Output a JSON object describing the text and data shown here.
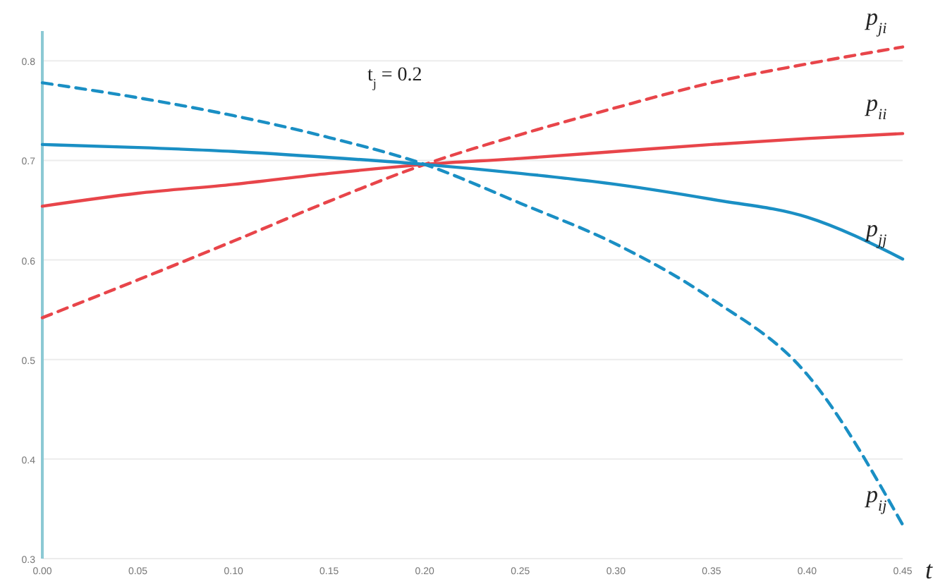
{
  "chart_data": {
    "type": "line",
    "xlabel": "t",
    "annotations": [
      "t$_{j}$ = 0.2"
    ],
    "x": [
      0,
      0.05,
      0.1,
      0.15,
      0.2,
      0.25,
      0.3,
      0.35,
      0.4,
      0.45
    ],
    "series": [
      {
        "name": "p$_{ji}$",
        "color": "#e8454a",
        "line_style": "dashed",
        "values": [
          0.542,
          0.58,
          0.619,
          0.659,
          0.696,
          0.726,
          0.753,
          0.778,
          0.797,
          0.814
        ]
      },
      {
        "name": "p$_{ii}$",
        "color": "#e8454a",
        "line_style": "solid",
        "values": [
          0.654,
          0.667,
          0.676,
          0.687,
          0.696,
          0.702,
          0.709,
          0.716,
          0.722,
          0.727
        ]
      },
      {
        "name": "p$_{jj}$",
        "color": "#1a8fc4",
        "line_style": "solid",
        "values": [
          0.716,
          0.713,
          0.709,
          0.703,
          0.696,
          0.687,
          0.676,
          0.661,
          0.643,
          0.601
        ]
      },
      {
        "name": "p$_{ij}$",
        "color": "#1a8fc4",
        "line_style": "dashed",
        "values": [
          0.778,
          0.763,
          0.745,
          0.723,
          0.696,
          0.657,
          0.616,
          0.561,
          0.485,
          0.334
        ]
      }
    ],
    "xlim": [
      0,
      0.45
    ],
    "xticks": [
      {
        "value": 0,
        "label": "0.00"
      },
      {
        "value": 0.05,
        "label": "0.05"
      },
      {
        "value": 0.1,
        "label": "0.10"
      },
      {
        "value": 0.15,
        "label": "0.15"
      },
      {
        "value": 0.2,
        "label": "0.20"
      },
      {
        "value": 0.25,
        "label": "0.25"
      },
      {
        "value": 0.3,
        "label": "0.30"
      },
      {
        "value": 0.35,
        "label": "0.35"
      },
      {
        "value": 0.4,
        "label": "0.40"
      },
      {
        "value": 0.45,
        "label": "0.45"
      }
    ],
    "ylim": [
      0.3,
      0.83
    ],
    "yticks": [
      0.3,
      0.4,
      0.5,
      0.6,
      0.7,
      0.8
    ],
    "grid": "y",
    "marker": "none"
  }
}
